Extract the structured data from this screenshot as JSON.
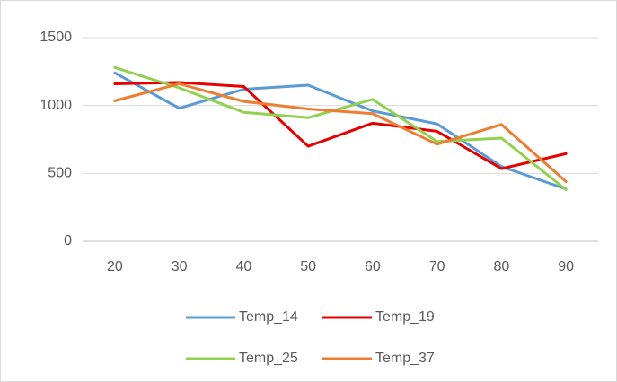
{
  "chart_data": {
    "type": "line",
    "categories": [
      "20",
      "30",
      "40",
      "50",
      "60",
      "70",
      "80",
      "90"
    ],
    "series": [
      {
        "name": "Temp_14",
        "color": "#5b9bd5",
        "values": [
          1240,
          980,
          1120,
          1150,
          960,
          865,
          550,
          385
        ]
      },
      {
        "name": "Temp_19",
        "color": "#e60000",
        "values": [
          1160,
          1170,
          1140,
          700,
          870,
          810,
          535,
          645
        ]
      },
      {
        "name": "Temp_25",
        "color": "#92d050",
        "values": [
          1280,
          1130,
          950,
          910,
          1045,
          735,
          760,
          380
        ]
      },
      {
        "name": "Temp_37",
        "color": "#ed7d31",
        "values": [
          1035,
          1160,
          1030,
          975,
          940,
          715,
          860,
          440
        ]
      }
    ],
    "ylim": [
      0,
      1500
    ],
    "yticks": [
      0,
      500,
      1000,
      1500
    ],
    "grid": true,
    "legend": "bottom"
  }
}
